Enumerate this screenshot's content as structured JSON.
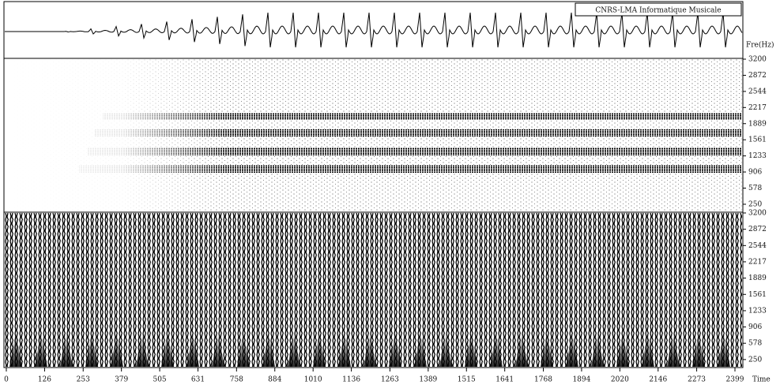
{
  "chart_data": {
    "type": "spectrogram",
    "label": "CNRS-LMA Informatique Musicale",
    "y_label": "Fre(Hz)",
    "x_label": "Time",
    "xlim": [
      0,
      2425
    ],
    "xticks": [
      0,
      126,
      253,
      379,
      505,
      631,
      758,
      884,
      1010,
      1136,
      1263,
      1389,
      1515,
      1641,
      1768,
      1894,
      2020,
      2146,
      2273,
      2399
    ],
    "ylim": [
      105,
      3200
    ],
    "yticks": [
      250,
      578,
      906,
      1233,
      1561,
      1889,
      2217,
      2544,
      2872,
      3200
    ]
  }
}
